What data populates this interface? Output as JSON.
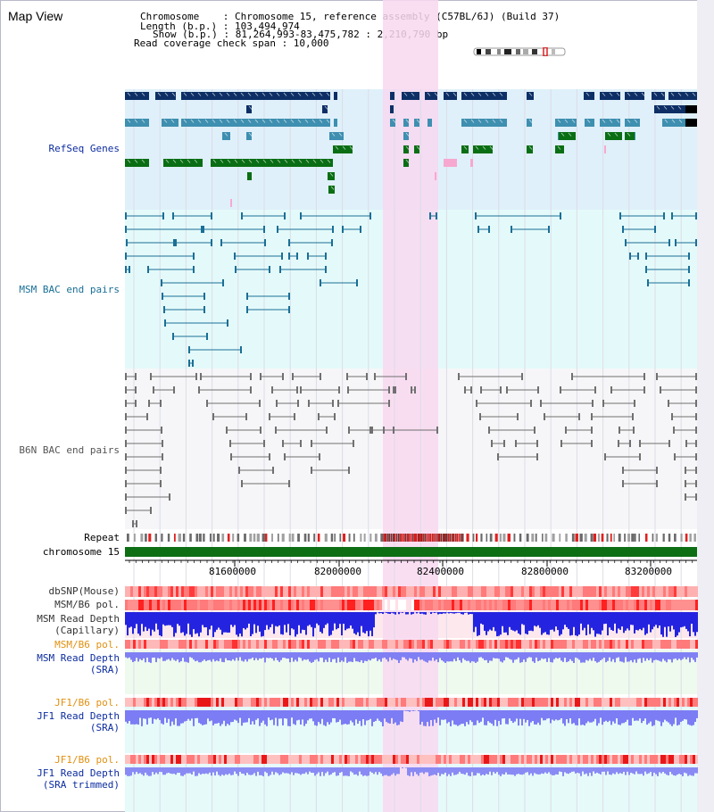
{
  "view_title": "Map View",
  "info": {
    "chromosome": "Chromosome    : Chromosome 15, reference assembly (C57BL/6J) (Build 37)",
    "length": "Length (b.p.) : 103,494,974",
    "show": "Show (b.p.) : 81,264,993-83,475,782 : 2,210,790 bp",
    "coverage": "Read coverage check span : 10,000"
  },
  "tracks": {
    "refseq": "RefSeq Genes",
    "msm_bac": "MSM BAC end pairs",
    "b6n_bac": "B6N BAC end pairs",
    "repeat": "Repeat",
    "chromosome": "chromosome 15",
    "dbsnp": "dbSNP(Mouse)",
    "msm_b6_pol_1": "MSM/B6 pol.",
    "msm_depth_cap_1": "MSM Read Depth",
    "msm_depth_cap_2": "(Capillary)",
    "msm_b6_pol_2": "MSM/B6 pol.",
    "msm_depth_sra_1": "MSM Read Depth",
    "msm_depth_sra_2": "(SRA)",
    "jf1_b6_pol_1": "JF1/B6 pol.",
    "jf1_depth_sra_1": "JF1 Read Depth",
    "jf1_depth_sra_2": "(SRA)",
    "jf1_b6_pol_2": "JF1/B6 pol.",
    "jf1_depth_trim_1": "JF1 Read Depth",
    "jf1_depth_trim_2": "(SRA trimmed)"
  },
  "axis": {
    "ticks": [
      "81600000",
      "82000000",
      "82400000",
      "82800000",
      "83200000"
    ]
  },
  "colors": {
    "refseq_bg": "#dff0fa",
    "msm_bg": "#e4fafa",
    "b6n_bg": "#f6f6f8",
    "highlight": "#f8d8f0",
    "gene_dark": "#0d2f66",
    "gene_mid": "#3e8fb0",
    "gene_green": "#0a6e14",
    "msm_line": "#1a6f96",
    "b6n_line": "#707070",
    "depth_blue": "#2424e0",
    "depth_light": "#7c7cf4",
    "pol_red": "#ff3030",
    "pol_orange_label": "#e09010",
    "label_blue": "#0c2ca0"
  }
}
